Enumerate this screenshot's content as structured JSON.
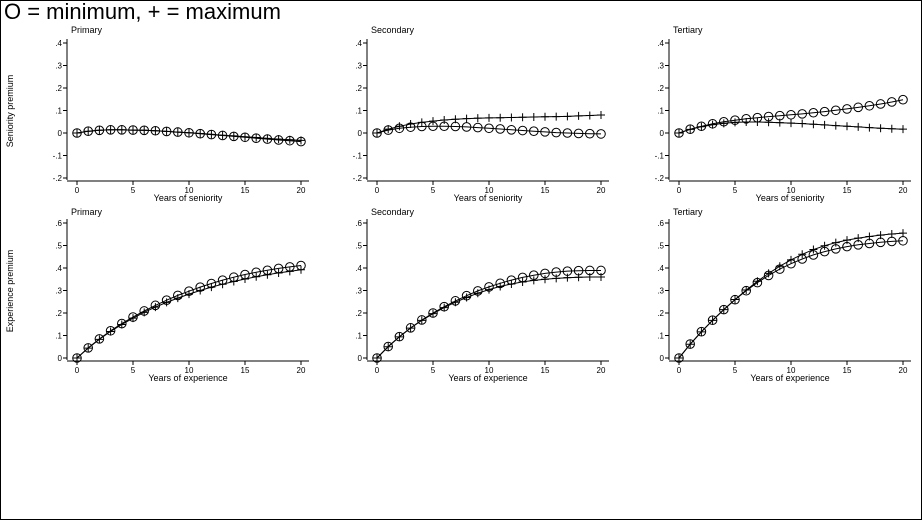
{
  "title": "O = minimum, + = maximum",
  "colors": {
    "ink": "#000000",
    "background": "#ffffff"
  },
  "row_labels": [
    "Seniority premium",
    "Experience premium"
  ],
  "chart_data": [
    {
      "type": "line",
      "title": "Primary",
      "xlabel": "Years of seniority",
      "ylabel": "Seniority premium",
      "xlim": [
        0,
        20
      ],
      "ylim": [
        -0.2,
        0.4
      ],
      "x_ticks": [
        0,
        5,
        10,
        15,
        20
      ],
      "y_ticks": [
        -0.2,
        -0.1,
        0,
        0.1,
        0.2,
        0.3,
        0.4
      ],
      "y_tick_labels": [
        "-.2",
        "-.1",
        "0",
        ".1",
        ".2",
        ".3",
        ".4"
      ],
      "x": [
        0,
        1,
        2,
        3,
        4,
        5,
        6,
        7,
        8,
        9,
        10,
        11,
        12,
        13,
        14,
        15,
        16,
        17,
        18,
        19,
        20
      ],
      "series": [
        {
          "name": "minimum",
          "marker": "circle",
          "values": [
            0.0,
            0.008,
            0.012,
            0.014,
            0.014,
            0.013,
            0.012,
            0.01,
            0.007,
            0.004,
            0.001,
            -0.003,
            -0.007,
            -0.011,
            -0.015,
            -0.019,
            -0.023,
            -0.027,
            -0.031,
            -0.034,
            -0.038
          ]
        },
        {
          "name": "maximum",
          "marker": "plus",
          "values": [
            0.0,
            0.008,
            0.012,
            0.014,
            0.014,
            0.013,
            0.012,
            0.01,
            0.007,
            0.004,
            0.001,
            -0.002,
            -0.006,
            -0.01,
            -0.013,
            -0.017,
            -0.02,
            -0.024,
            -0.027,
            -0.03,
            -0.033
          ]
        }
      ]
    },
    {
      "type": "line",
      "title": "Secondary",
      "xlabel": "Years of seniority",
      "ylabel": "",
      "xlim": [
        0,
        20
      ],
      "ylim": [
        -0.2,
        0.4
      ],
      "x_ticks": [
        0,
        5,
        10,
        15,
        20
      ],
      "y_ticks": [
        -0.2,
        -0.1,
        0,
        0.1,
        0.2,
        0.3,
        0.4
      ],
      "y_tick_labels": [
        "-.2",
        "-.1",
        "0",
        ".1",
        ".2",
        ".3",
        ".4"
      ],
      "x": [
        0,
        1,
        2,
        3,
        4,
        5,
        6,
        7,
        8,
        9,
        10,
        11,
        12,
        13,
        14,
        15,
        16,
        17,
        18,
        19,
        20
      ],
      "series": [
        {
          "name": "minimum",
          "marker": "circle",
          "values": [
            0.0,
            0.013,
            0.021,
            0.026,
            0.029,
            0.03,
            0.03,
            0.029,
            0.027,
            0.024,
            0.021,
            0.018,
            0.014,
            0.011,
            0.008,
            0.005,
            0.002,
            0.0,
            -0.002,
            -0.003,
            -0.004
          ]
        },
        {
          "name": "maximum",
          "marker": "plus",
          "values": [
            0.0,
            0.017,
            0.03,
            0.04,
            0.047,
            0.053,
            0.058,
            0.061,
            0.064,
            0.066,
            0.067,
            0.068,
            0.069,
            0.07,
            0.071,
            0.072,
            0.073,
            0.074,
            0.076,
            0.078,
            0.08
          ]
        }
      ]
    },
    {
      "type": "line",
      "title": "Tertiary",
      "xlabel": "Years of seniority",
      "ylabel": "",
      "xlim": [
        0,
        20
      ],
      "ylim": [
        -0.2,
        0.4
      ],
      "x_ticks": [
        0,
        5,
        10,
        15,
        20
      ],
      "y_ticks": [
        -0.2,
        -0.1,
        0,
        0.1,
        0.2,
        0.3,
        0.4
      ],
      "y_tick_labels": [
        "-.2",
        "-.1",
        "0",
        ".1",
        ".2",
        ".3",
        ".4"
      ],
      "x": [
        0,
        1,
        2,
        3,
        4,
        5,
        6,
        7,
        8,
        9,
        10,
        11,
        12,
        13,
        14,
        15,
        16,
        17,
        18,
        19,
        20
      ],
      "series": [
        {
          "name": "minimum",
          "marker": "circle",
          "values": [
            0.0,
            0.017,
            0.03,
            0.041,
            0.05,
            0.057,
            0.063,
            0.068,
            0.073,
            0.077,
            0.081,
            0.085,
            0.09,
            0.095,
            0.101,
            0.107,
            0.114,
            0.121,
            0.129,
            0.138,
            0.148
          ]
        },
        {
          "name": "maximum",
          "marker": "plus",
          "values": [
            0.0,
            0.016,
            0.028,
            0.037,
            0.043,
            0.047,
            0.049,
            0.049,
            0.048,
            0.046,
            0.044,
            0.042,
            0.039,
            0.036,
            0.033,
            0.03,
            0.027,
            0.024,
            0.021,
            0.019,
            0.017
          ]
        }
      ]
    },
    {
      "type": "line",
      "title": "Primary",
      "xlabel": "Years of experience",
      "ylabel": "Experience premium",
      "xlim": [
        0,
        20
      ],
      "ylim": [
        0,
        0.6
      ],
      "x_ticks": [
        0,
        5,
        10,
        15,
        20
      ],
      "y_ticks": [
        0,
        0.1,
        0.2,
        0.3,
        0.4,
        0.5,
        0.6
      ],
      "y_tick_labels": [
        "0",
        ".1",
        ".2",
        ".3",
        ".4",
        ".5",
        ".6"
      ],
      "x": [
        0,
        1,
        2,
        3,
        4,
        5,
        6,
        7,
        8,
        9,
        10,
        11,
        12,
        13,
        14,
        15,
        16,
        17,
        18,
        19,
        20
      ],
      "series": [
        {
          "name": "minimum",
          "marker": "circle",
          "values": [
            0.0,
            0.045,
            0.085,
            0.121,
            0.153,
            0.182,
            0.209,
            0.234,
            0.257,
            0.278,
            0.297,
            0.315,
            0.331,
            0.346,
            0.359,
            0.371,
            0.381,
            0.39,
            0.398,
            0.405,
            0.411
          ]
        },
        {
          "name": "maximum",
          "marker": "plus",
          "values": [
            0.0,
            0.044,
            0.083,
            0.118,
            0.149,
            0.177,
            0.203,
            0.226,
            0.247,
            0.266,
            0.284,
            0.3,
            0.315,
            0.328,
            0.34,
            0.351,
            0.361,
            0.37,
            0.378,
            0.385,
            0.392
          ]
        }
      ]
    },
    {
      "type": "line",
      "title": "Secondary",
      "xlabel": "Years of experience",
      "ylabel": "",
      "xlim": [
        0,
        20
      ],
      "ylim": [
        0,
        0.6
      ],
      "x_ticks": [
        0,
        5,
        10,
        15,
        20
      ],
      "y_ticks": [
        0,
        0.1,
        0.2,
        0.3,
        0.4,
        0.5,
        0.6
      ],
      "y_tick_labels": [
        "0",
        ".1",
        ".2",
        ".3",
        ".4",
        ".5",
        ".6"
      ],
      "x": [
        0,
        1,
        2,
        3,
        4,
        5,
        6,
        7,
        8,
        9,
        10,
        11,
        12,
        13,
        14,
        15,
        16,
        17,
        18,
        19,
        20
      ],
      "series": [
        {
          "name": "minimum",
          "marker": "circle",
          "values": [
            0.0,
            0.051,
            0.095,
            0.134,
            0.169,
            0.2,
            0.228,
            0.254,
            0.277,
            0.298,
            0.316,
            0.332,
            0.346,
            0.358,
            0.368,
            0.376,
            0.382,
            0.386,
            0.388,
            0.389,
            0.389
          ]
        },
        {
          "name": "maximum",
          "marker": "plus",
          "values": [
            0.0,
            0.05,
            0.094,
            0.133,
            0.167,
            0.197,
            0.224,
            0.248,
            0.269,
            0.288,
            0.304,
            0.318,
            0.329,
            0.338,
            0.345,
            0.35,
            0.354,
            0.357,
            0.359,
            0.36,
            0.36
          ]
        }
      ]
    },
    {
      "type": "line",
      "title": "Tertiary",
      "xlabel": "Years of experience",
      "ylabel": "",
      "xlim": [
        0,
        20
      ],
      "ylim": [
        0,
        0.6
      ],
      "x_ticks": [
        0,
        5,
        10,
        15,
        20
      ],
      "y_ticks": [
        0,
        0.1,
        0.2,
        0.3,
        0.4,
        0.5,
        0.6
      ],
      "y_tick_labels": [
        "0",
        ".1",
        ".2",
        ".3",
        ".4",
        ".5",
        ".6"
      ],
      "x": [
        0,
        1,
        2,
        3,
        4,
        5,
        6,
        7,
        8,
        9,
        10,
        11,
        12,
        13,
        14,
        15,
        16,
        17,
        18,
        19,
        20
      ],
      "series": [
        {
          "name": "minimum",
          "marker": "circle",
          "values": [
            0.0,
            0.062,
            0.117,
            0.168,
            0.215,
            0.259,
            0.299,
            0.335,
            0.367,
            0.395,
            0.419,
            0.44,
            0.458,
            0.473,
            0.485,
            0.495,
            0.503,
            0.509,
            0.514,
            0.518,
            0.521
          ]
        },
        {
          "name": "maximum",
          "marker": "plus",
          "values": [
            0.0,
            0.061,
            0.116,
            0.167,
            0.215,
            0.26,
            0.302,
            0.341,
            0.376,
            0.408,
            0.436,
            0.461,
            0.482,
            0.499,
            0.513,
            0.524,
            0.533,
            0.54,
            0.546,
            0.551,
            0.555
          ]
        }
      ]
    }
  ]
}
